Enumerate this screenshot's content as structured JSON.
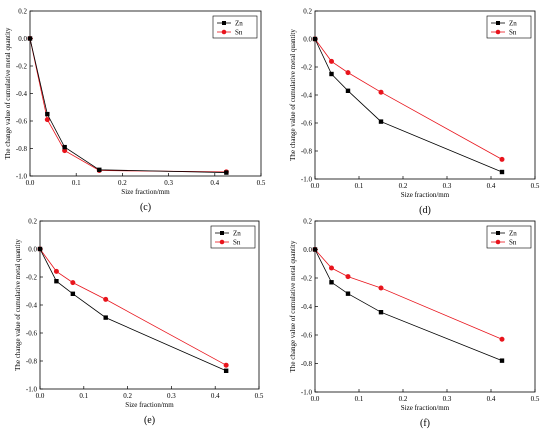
{
  "chart_data": [
    {
      "panel": "(c)",
      "type": "line",
      "xlabel": "Size fraction/mm",
      "ylabel": "The change value of cumulative metal quantity",
      "xlim": [
        0,
        0.5
      ],
      "ylim": [
        -1.0,
        0.2
      ],
      "xticks": [
        0.0,
        0.1,
        0.2,
        0.3,
        0.4,
        0.5
      ],
      "xtick_labels": [
        "0.0",
        "0.1",
        "0.2",
        "0.3",
        "0.4",
        "0.5"
      ],
      "yticks": [
        0.2,
        0.0,
        -0.2,
        -0.4,
        -0.6,
        -0.8,
        -1.0
      ],
      "ytick_labels": [
        "0.2",
        "0.0",
        "-0.2",
        "-0.4",
        "-0.6",
        "-0.8",
        "-1.0"
      ],
      "legend": "top-right",
      "series": [
        {
          "name": "Zn",
          "color": "#000000",
          "marker": "square",
          "x": [
            0,
            0.0375,
            0.075,
            0.15,
            0.425
          ],
          "y": [
            0.0,
            -0.55,
            -0.79,
            -0.955,
            -0.975
          ]
        },
        {
          "name": "Sn",
          "color": "#e8141c",
          "marker": "circle",
          "x": [
            0,
            0.0375,
            0.075,
            0.15,
            0.425
          ],
          "y": [
            0.0,
            -0.59,
            -0.815,
            -0.96,
            -0.97
          ]
        }
      ]
    },
    {
      "panel": "(d)",
      "type": "line",
      "xlabel": "Size fraction/mm",
      "ylabel": "The change value of cumulative metal quantity",
      "xlim": [
        0,
        0.5
      ],
      "ylim": [
        -1.0,
        0.2
      ],
      "xticks": [
        0.0,
        0.1,
        0.2,
        0.3,
        0.4,
        0.5
      ],
      "xtick_labels": [
        "0.0",
        "0.1",
        "0.2",
        "0.3",
        "0.4",
        "0.5"
      ],
      "yticks": [
        0.2,
        0.0,
        -0.2,
        -0.4,
        -0.6,
        -0.8,
        -1.0
      ],
      "ytick_labels": [
        "0.2",
        "0.0",
        "-0.2",
        "-0.4",
        "-0.6",
        "-0.8",
        "-1.0"
      ],
      "legend": "top-right",
      "series": [
        {
          "name": "Zn",
          "color": "#000000",
          "marker": "square",
          "x": [
            0,
            0.0375,
            0.075,
            0.15,
            0.425
          ],
          "y": [
            0.0,
            -0.25,
            -0.37,
            -0.59,
            -0.95
          ]
        },
        {
          "name": "Sn",
          "color": "#e8141c",
          "marker": "circle",
          "x": [
            0,
            0.0375,
            0.075,
            0.15,
            0.425
          ],
          "y": [
            0.0,
            -0.16,
            -0.24,
            -0.38,
            -0.86
          ]
        }
      ]
    },
    {
      "panel": "(e)",
      "type": "line",
      "xlabel": "Size fraction/mm",
      "ylabel": "The change value of cumulative metal quantity",
      "xlim": [
        0,
        0.5
      ],
      "ylim": [
        -1.0,
        0.2
      ],
      "xticks": [
        0.0,
        0.1,
        0.2,
        0.3,
        0.4,
        0.5
      ],
      "xtick_labels": [
        "0.0",
        "0.1",
        "0.2",
        "0.3",
        "0.4",
        "0.5"
      ],
      "yticks": [
        0.2,
        0.0,
        -0.2,
        -0.4,
        -0.6,
        -0.8,
        -1.0
      ],
      "ytick_labels": [
        "0.2",
        "0.0",
        "-0.2",
        "-0.4",
        "-0.6",
        "-0.8",
        "-1.0"
      ],
      "legend": "top-right",
      "series": [
        {
          "name": "Zn",
          "color": "#000000",
          "marker": "square",
          "x": [
            0,
            0.0375,
            0.075,
            0.15,
            0.425
          ],
          "y": [
            0.0,
            -0.23,
            -0.32,
            -0.49,
            -0.87
          ]
        },
        {
          "name": "Sn",
          "color": "#e8141c",
          "marker": "circle",
          "x": [
            0,
            0.0375,
            0.075,
            0.15,
            0.425
          ],
          "y": [
            0.0,
            -0.16,
            -0.24,
            -0.36,
            -0.83
          ]
        }
      ]
    },
    {
      "panel": "(f)",
      "type": "line",
      "xlabel": "Size fraction/mm",
      "ylabel": "The change value of cumulative metal quantity",
      "xlim": [
        0,
        0.5
      ],
      "ylim": [
        -1.0,
        0.2
      ],
      "xticks": [
        0.0,
        0.1,
        0.2,
        0.3,
        0.4,
        0.5
      ],
      "xtick_labels": [
        "0.0",
        "0.1",
        "0.2",
        "0.3",
        "0.4",
        "0.5"
      ],
      "yticks": [
        0.2,
        0.0,
        -0.2,
        -0.4,
        -0.6,
        -0.8,
        -1.0
      ],
      "ytick_labels": [
        "0.2",
        "0.0",
        "-0.2",
        "-0.4",
        "-0.6",
        "-0.8",
        "-1.0"
      ],
      "legend": "top-right",
      "series": [
        {
          "name": "Zn",
          "color": "#000000",
          "marker": "square",
          "x": [
            0,
            0.0375,
            0.075,
            0.15,
            0.425
          ],
          "y": [
            0.0,
            -0.23,
            -0.31,
            -0.44,
            -0.78
          ]
        },
        {
          "name": "Sn",
          "color": "#e8141c",
          "marker": "circle",
          "x": [
            0,
            0.0375,
            0.075,
            0.15,
            0.425
          ],
          "y": [
            0.0,
            -0.13,
            -0.19,
            -0.27,
            -0.63
          ]
        }
      ]
    }
  ]
}
